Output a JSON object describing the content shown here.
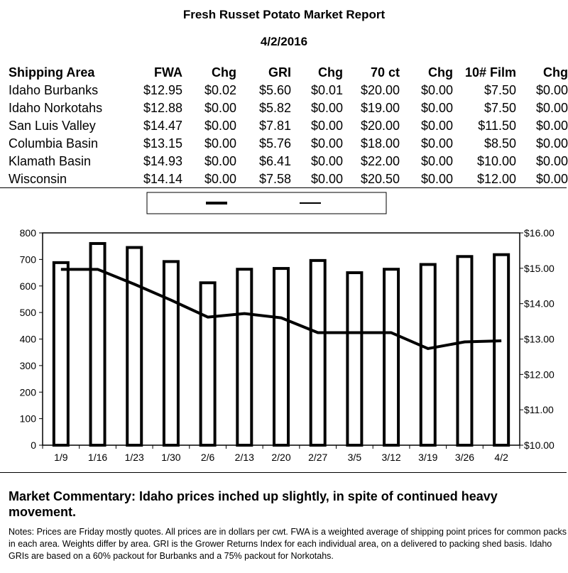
{
  "report": {
    "title": "Fresh Russet Potato Market Report",
    "date": "4/2/2016"
  },
  "table": {
    "headers": [
      "Shipping Area",
      "FWA",
      "Chg",
      "GRI",
      "Chg",
      "70 ct",
      "Chg",
      "10# Film",
      "Chg"
    ],
    "rows": [
      [
        "Idaho Burbanks",
        "$12.95",
        "$0.02",
        "$5.60",
        "$0.01",
        "$20.00",
        "$0.00",
        "$7.50",
        "$0.00"
      ],
      [
        "Idaho Norkotahs",
        "$12.88",
        "$0.00",
        "$5.82",
        "$0.00",
        "$19.00",
        "$0.00",
        "$7.50",
        "$0.00"
      ],
      [
        "San Luis Valley",
        "$14.47",
        "$0.00",
        "$7.81",
        "$0.00",
        "$20.00",
        "$0.00",
        "$11.50",
        "$0.00"
      ],
      [
        "Columbia Basin",
        "$13.15",
        "$0.00",
        "$5.76",
        "$0.00",
        "$18.00",
        "$0.00",
        "$8.50",
        "$0.00"
      ],
      [
        "Klamath Basin",
        "$14.93",
        "$0.00",
        "$6.41",
        "$0.00",
        "$22.00",
        "$0.00",
        "$10.00",
        "$0.00"
      ],
      [
        "Wisconsin",
        "$14.14",
        "$0.00",
        "$7.58",
        "$0.00",
        "$20.50",
        "$0.00",
        "$12.00",
        "$0.00"
      ]
    ]
  },
  "chart_data": {
    "type": "bar",
    "categories": [
      "1/9",
      "1/16",
      "1/23",
      "1/30",
      "2/6",
      "2/13",
      "2/20",
      "2/27",
      "3/5",
      "3/12",
      "3/19",
      "3/26",
      "4/2"
    ],
    "series": [
      {
        "kind": "bar",
        "axis": "left",
        "values": [
          688,
          760,
          745,
          692,
          612,
          663,
          666,
          696,
          650,
          663,
          681,
          711,
          718
        ]
      },
      {
        "kind": "line",
        "axis": "right",
        "values": [
          14.97,
          14.97,
          14.55,
          14.1,
          13.62,
          13.72,
          13.6,
          13.18,
          13.18,
          13.18,
          12.73,
          12.92,
          12.95
        ]
      }
    ],
    "left_axis": {
      "ylim": [
        0,
        800
      ],
      "ticks": [
        "0",
        "100",
        "200",
        "300",
        "400",
        "500",
        "600",
        "700",
        "800"
      ]
    },
    "right_axis": {
      "ylim": [
        10,
        16
      ],
      "ticks": [
        "$10.00",
        "$11.00",
        "$12.00",
        "$13.00",
        "$14.00",
        "$15.00",
        "$16.00"
      ]
    },
    "legend": {
      "placement": "top-center",
      "entries": [
        "",
        ""
      ]
    },
    "grid": false
  },
  "commentary": "Market Commentary: Idaho prices inched up slightly, in spite of continued heavy movement.",
  "notes": "Notes: Prices are Friday mostly quotes. All prices are in dollars per cwt. FWA is a weighted average of shipping point prices for  common packs in each area. Weights differ by area. GRI is the Grower Returns Index for each individual area, on a delivered to packing shed basis. Idaho GRIs are based on a 60% packout for Burbanks and a 75% packout for Norkotahs."
}
